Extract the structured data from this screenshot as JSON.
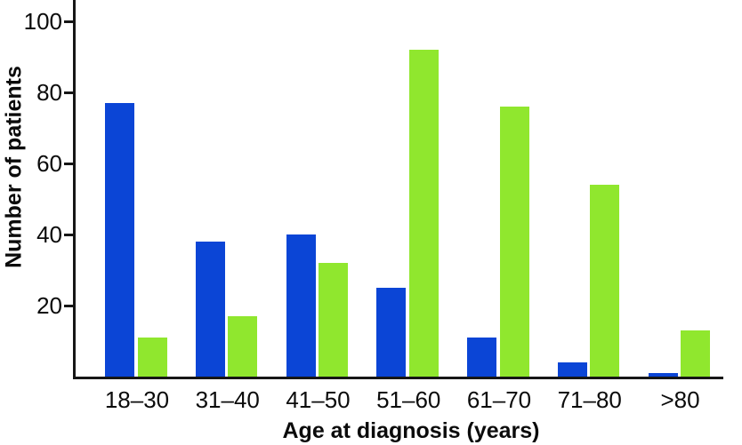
{
  "chart_data": {
    "type": "bar",
    "title": "",
    "xlabel": "Age at diagnosis (years)",
    "ylabel": "Number of patients",
    "categories": [
      "18–30",
      "31–40",
      "41–50",
      "51–60",
      "61–70",
      "71–80",
      ">80"
    ],
    "series": [
      {
        "name": "series-1-blue",
        "color": "#0b45d6",
        "values": [
          77,
          38,
          40,
          25,
          11,
          4,
          1
        ]
      },
      {
        "name": "series-2-green",
        "color": "#90e72e",
        "values": [
          11,
          17,
          32,
          92,
          76,
          54,
          13
        ]
      }
    ],
    "y_ticks": [
      20,
      40,
      60,
      80,
      100
    ],
    "ylim": [
      0,
      106
    ],
    "grid": false,
    "legend": "none",
    "axis_color": "#161616"
  }
}
